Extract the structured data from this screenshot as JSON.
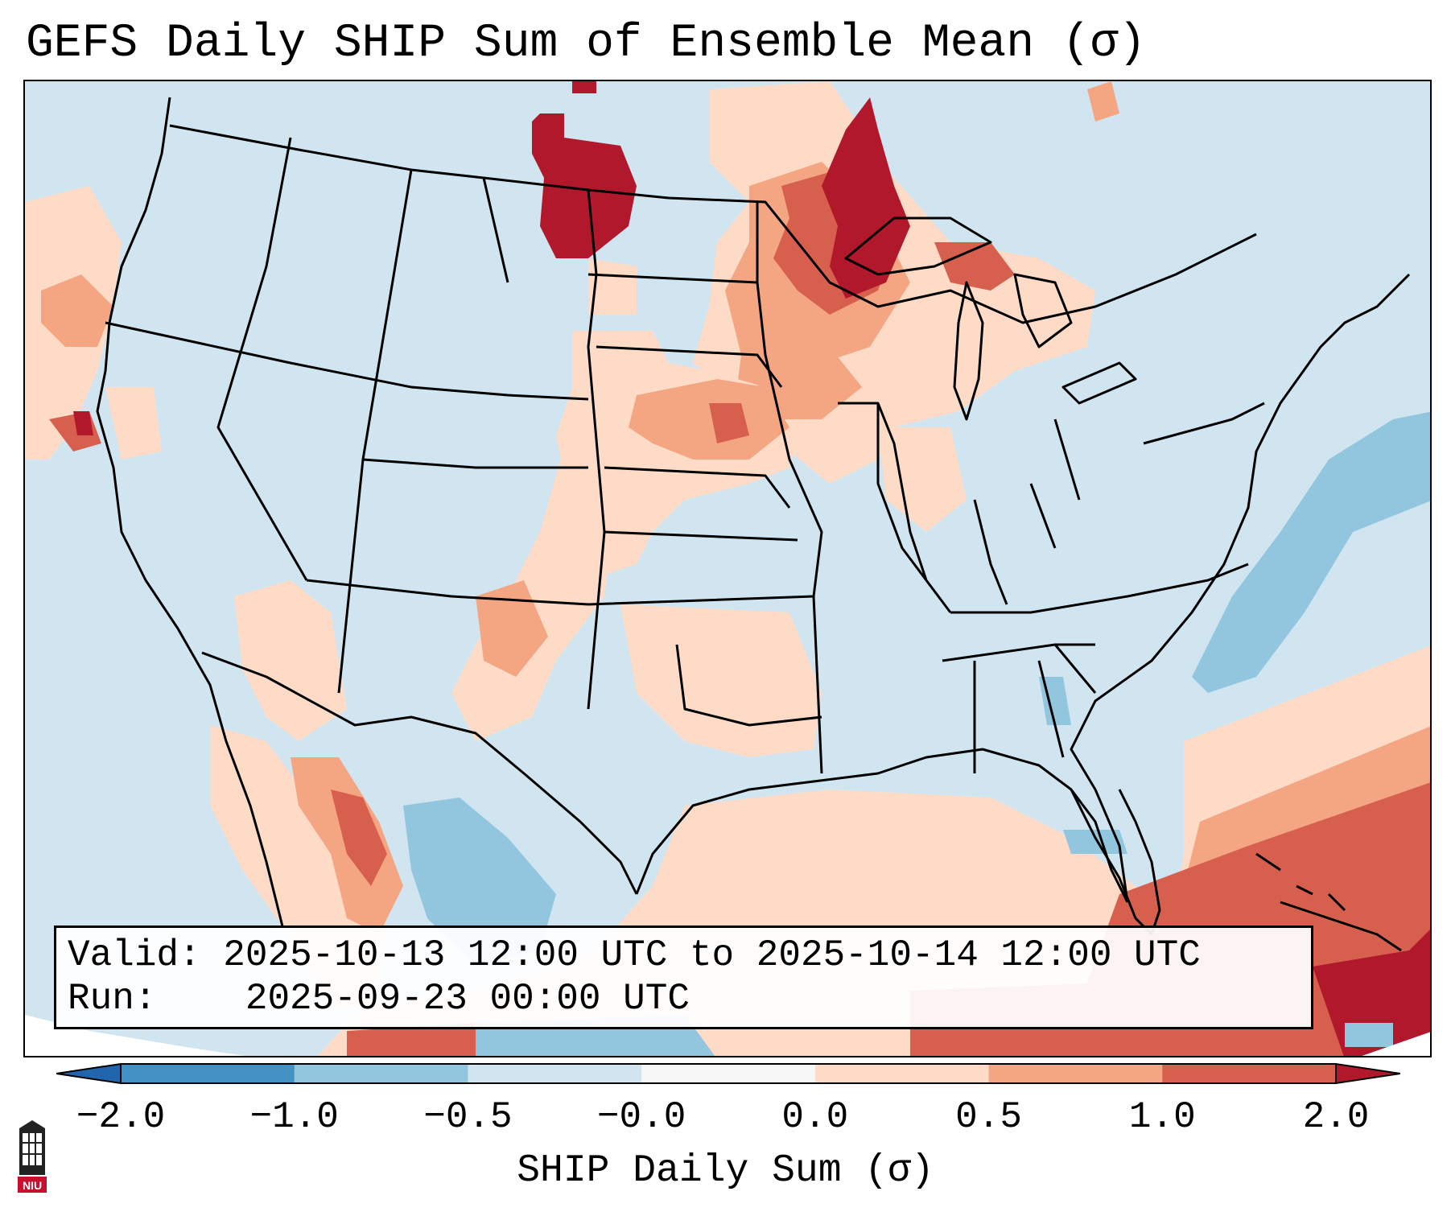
{
  "title": "GEFS Daily SHIP Sum of Ensemble Mean (σ)",
  "info": {
    "valid_label": "Valid:",
    "valid_value": "2025-10-13 12:00 UTC to 2025-10-14 12:00 UTC",
    "run_label": "Run:",
    "run_value": "2025-09-23 00:00 UTC"
  },
  "colorbar": {
    "label": "SHIP Daily Sum (σ)",
    "tick_labels": [
      "−2.0",
      "−1.0",
      "−0.5",
      "−0.0",
      "0.0",
      "0.5",
      "1.0",
      "2.0"
    ],
    "bins": [
      {
        "from": -2.0,
        "to": -1.0,
        "color": "#4392c6"
      },
      {
        "from": -1.0,
        "to": -0.5,
        "color": "#92c5de"
      },
      {
        "from": -0.5,
        "to": -0.0,
        "color": "#d1e5f0"
      },
      {
        "from": -0.0,
        "to": 0.0,
        "color": "#f7f7f7"
      },
      {
        "from": 0.0,
        "to": 0.5,
        "color": "#fddbc7"
      },
      {
        "from": 0.5,
        "to": 1.0,
        "color": "#f4a582"
      },
      {
        "from": 1.0,
        "to": 2.0,
        "color": "#d6604d"
      }
    ],
    "extend_low_color": "#2166ac",
    "extend_high_color": "#b2182b"
  },
  "colors": {
    "background": "#d1e5f0",
    "light_red": "#fddbc7",
    "medium_red": "#f4a582",
    "red": "#d6604d",
    "dark_red": "#b2182b",
    "light_blue": "#92c5de",
    "blue": "#4392c6"
  },
  "logo": {
    "text": "NIU",
    "icon": "university-logo-icon"
  }
}
